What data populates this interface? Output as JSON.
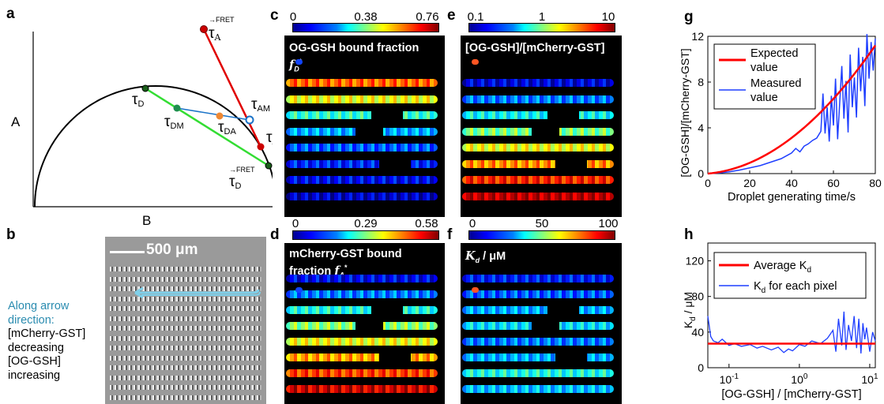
{
  "panel_labels": {
    "a": "a",
    "b": "b",
    "c": "c",
    "d": "d",
    "e": "e",
    "f": "f",
    "g": "g",
    "h": "h"
  },
  "panel_a": {
    "y_axis_label": "A",
    "x_axis_label": "B",
    "points": {
      "tau_A_FRET": "τA FRET",
      "tau_D": "τD",
      "tau_DM": "τDM",
      "tau_DA": "τDA",
      "tau_AM": "τAM",
      "tau_A": "τA",
      "tau_D_FRET": "τD FRET"
    },
    "colors": {
      "red": "#e00000",
      "green": "#33dd33",
      "blue": "#1a73c8",
      "orange": "#ee8833",
      "darkgreen": "#1a5e1a"
    }
  },
  "panel_b": {
    "scale_bar": "500 μm",
    "side_text": {
      "line1": "Along arrow",
      "line2": "direction:",
      "line3": "[mCherry-GST]",
      "line4": "decreasing",
      "line5": "[OG-GSH]",
      "line6": "increasing"
    }
  },
  "panel_c": {
    "title_line1": "OG-GSH bound fraction",
    "title_line2_sym": "f",
    "title_line2_sub": "D",
    "title_line2_sup": "*",
    "ticks": [
      "0",
      "0.38",
      "0.76"
    ]
  },
  "panel_d": {
    "title_line1": "mCherry-GST bound",
    "title_line2": "fraction ",
    "title_line2_sym": "f",
    "title_line2_sub": "A",
    "title_line2_sup": "*",
    "ticks": [
      "0",
      "0.29",
      "0.58"
    ]
  },
  "panel_e": {
    "title_line1": "[OG-GSH]/[mCherry-GST]",
    "ticks": [
      "0.1",
      "1",
      "10"
    ]
  },
  "panel_f": {
    "title_sym": "K",
    "title_sub": "d",
    "title_rest": " / μM",
    "ticks": [
      "0",
      "50",
      "100"
    ]
  },
  "chart_data": [
    {
      "type": "line",
      "xlabel": "Droplet generating time/s",
      "ylabel": "[OG-GSH]/[mCherry-GST]",
      "xlim": [
        0,
        80
      ],
      "ylim": [
        0,
        12
      ],
      "xticks": [
        "0",
        "20",
        "40",
        "60",
        "80"
      ],
      "yticks": [
        "0",
        "4",
        "8",
        "12"
      ],
      "legend_position": "top-left",
      "series": [
        {
          "name": "Expected value",
          "color": "#ff0000",
          "x": [
            0,
            10,
            20,
            30,
            40,
            50,
            55,
            60,
            65,
            70,
            75,
            80
          ],
          "y": [
            0,
            0.15,
            0.5,
            1.0,
            1.8,
            3.0,
            3.9,
            5.0,
            6.3,
            7.8,
            9.4,
            11.2
          ]
        },
        {
          "name": "Measured value",
          "color": "#1f3fff",
          "x": [
            0,
            5,
            10,
            15,
            20,
            25,
            30,
            35,
            38,
            40,
            42,
            44,
            46,
            48,
            50,
            52,
            54,
            55,
            56,
            57,
            58,
            59,
            60,
            61,
            62,
            63,
            64,
            65,
            66,
            67,
            68,
            69,
            70,
            71,
            72,
            73,
            74,
            75,
            76,
            77,
            78,
            79,
            80
          ],
          "y": [
            0,
            0.05,
            0.15,
            0.3,
            0.5,
            0.7,
            1.0,
            1.3,
            1.6,
            1.8,
            2.2,
            1.9,
            2.4,
            2.6,
            2.9,
            3.1,
            3.7,
            7.0,
            3.5,
            5.8,
            2.8,
            6.8,
            4.2,
            8.3,
            3.0,
            6.2,
            9.4,
            4.8,
            8.1,
            3.6,
            10.4,
            5.8,
            8.4,
            4.9,
            11.0,
            7.2,
            10.2,
            5.9,
            12.2,
            8.3,
            11.5,
            9.0,
            11.8
          ]
        }
      ]
    },
    {
      "type": "line",
      "xlabel": "[OG-GSH] / [mCherry-GST]",
      "ylabel": "Kd / μM",
      "xscale": "log",
      "xlim": [
        0.05,
        12
      ],
      "ylim": [
        0,
        140
      ],
      "xticks": [
        "10-1",
        "100",
        "101"
      ],
      "yticks": [
        "0",
        "40",
        "80",
        "120"
      ],
      "legend_position": "top",
      "series": [
        {
          "name": "Average Kd",
          "color": "#ff0000",
          "x": [
            0.05,
            12
          ],
          "y": [
            27,
            27
          ]
        },
        {
          "name": "Kd for each pixel",
          "color": "#1f3fff",
          "x": [
            0.05,
            0.055,
            0.06,
            0.07,
            0.08,
            0.1,
            0.12,
            0.15,
            0.2,
            0.25,
            0.3,
            0.4,
            0.5,
            0.6,
            0.7,
            0.8,
            1.0,
            1.2,
            1.5,
            2.0,
            2.5,
            3.0,
            3.3,
            3.6,
            4.0,
            4.3,
            4.6,
            5.0,
            5.5,
            6.0,
            6.5,
            7.0,
            7.5,
            8.0,
            8.5,
            9.0,
            10.0,
            11.0,
            12.0
          ],
          "y": [
            58,
            35,
            30,
            28,
            32,
            25,
            27,
            24,
            26,
            22,
            24,
            20,
            23,
            17,
            21,
            19,
            26,
            24,
            30,
            27,
            33,
            42,
            18,
            55,
            25,
            63,
            20,
            48,
            30,
            58,
            22,
            55,
            16,
            50,
            32,
            45,
            18,
            40,
            30
          ]
        }
      ]
    }
  ]
}
